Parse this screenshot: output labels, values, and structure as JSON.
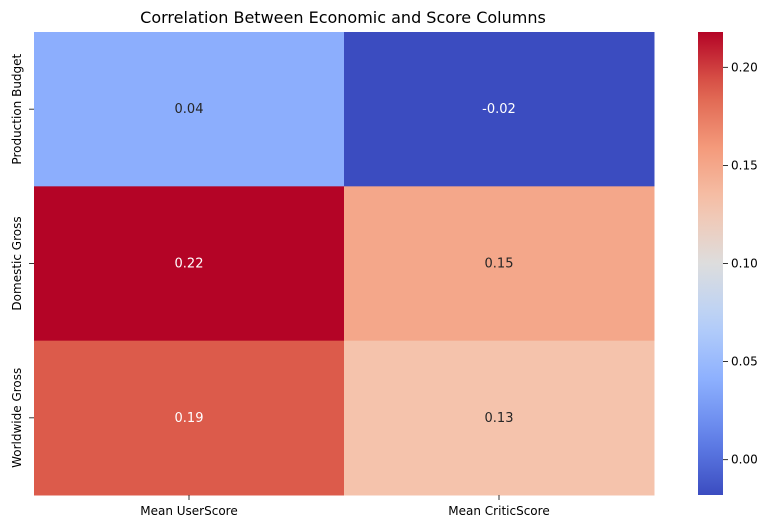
{
  "chart_data": {
    "type": "heatmap",
    "title": "Correlation Between Economic and Score Columns",
    "xlabel": "",
    "ylabel": "",
    "x_categories": [
      "Mean UserScore",
      "Mean CriticScore"
    ],
    "y_categories": [
      "Production Budget",
      "Domestic Gross",
      "Worldwide Gross"
    ],
    "values": [
      [
        0.04,
        -0.02
      ],
      [
        0.22,
        0.15
      ],
      [
        0.19,
        0.13
      ]
    ],
    "cell_labels": [
      [
        "0.04",
        "-0.02"
      ],
      [
        "0.22",
        "0.15"
      ],
      [
        "0.19",
        "0.13"
      ]
    ],
    "value_range": [
      -0.018,
      0.218
    ],
    "colormap": "coolwarm",
    "colorbar_ticks": [
      "0.00",
      "0.05",
      "0.10",
      "0.15",
      "0.20"
    ],
    "grid": false,
    "legend": "right"
  }
}
